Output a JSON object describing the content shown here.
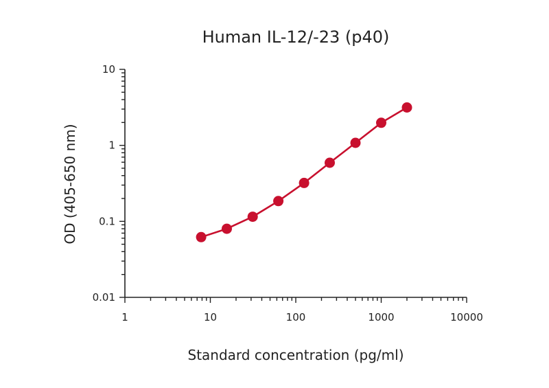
{
  "chart_data": {
    "type": "line",
    "title": "Human IL-12/-23 (p40)",
    "xlabel": "Standard concentration (pg/ml)",
    "ylabel": "OD (405-650 nm)",
    "x_scale": "log",
    "y_scale": "log",
    "xlim": [
      1,
      10000
    ],
    "ylim": [
      0.01,
      10
    ],
    "x_ticks": [
      "1",
      "10",
      "100",
      "1000",
      "10000"
    ],
    "y_ticks": [
      "0.01",
      "0.1",
      "1",
      "10"
    ],
    "grid": false,
    "series": [
      {
        "color": "#c8102e",
        "x": [
          7.8,
          15.6,
          31.3,
          62.5,
          125,
          250,
          500,
          1000,
          2000
        ],
        "y": [
          0.062,
          0.08,
          0.115,
          0.185,
          0.32,
          0.59,
          1.08,
          1.98,
          3.15
        ]
      }
    ]
  }
}
